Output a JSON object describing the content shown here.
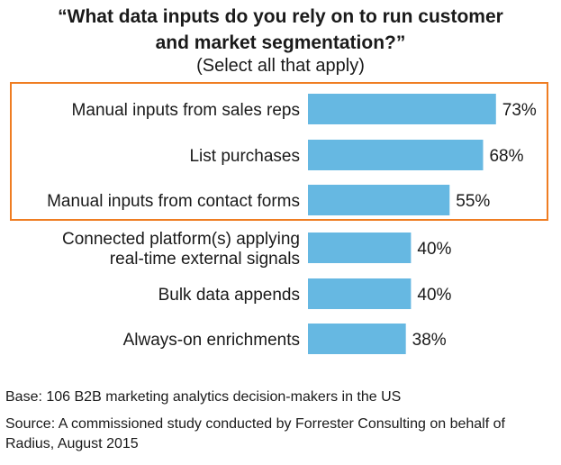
{
  "chart_data": {
    "type": "bar",
    "orientation": "horizontal",
    "title_lines": [
      "“What data inputs do you rely on to run customer",
      "and market segmentation?”"
    ],
    "subtitle": "(Select all that apply)",
    "categories": [
      [
        "Manual inputs from sales reps"
      ],
      [
        "List purchases"
      ],
      [
        "Manual inputs from contact forms"
      ],
      [
        "Connected platform(s) applying",
        "real-time external signals"
      ],
      [
        "Bulk data appends"
      ],
      [
        "Always-on enrichments"
      ]
    ],
    "values": [
      73,
      68,
      55,
      40,
      40,
      38
    ],
    "value_labels": [
      "73%",
      "68%",
      "55%",
      "40%",
      "40%",
      "38%"
    ],
    "highlighted_categories": [
      0,
      1,
      2
    ],
    "bar_color": "#66b8e2",
    "highlight_color": "#ef7d22",
    "xlim": [
      0,
      100
    ],
    "grid": false,
    "legend": "none"
  },
  "footnotes": {
    "base": "Base: 106 B2B marketing analytics decision-makers in the US",
    "source": "Source: A commissioned study conducted by Forrester Consulting on behalf of Radius, August 2015"
  }
}
